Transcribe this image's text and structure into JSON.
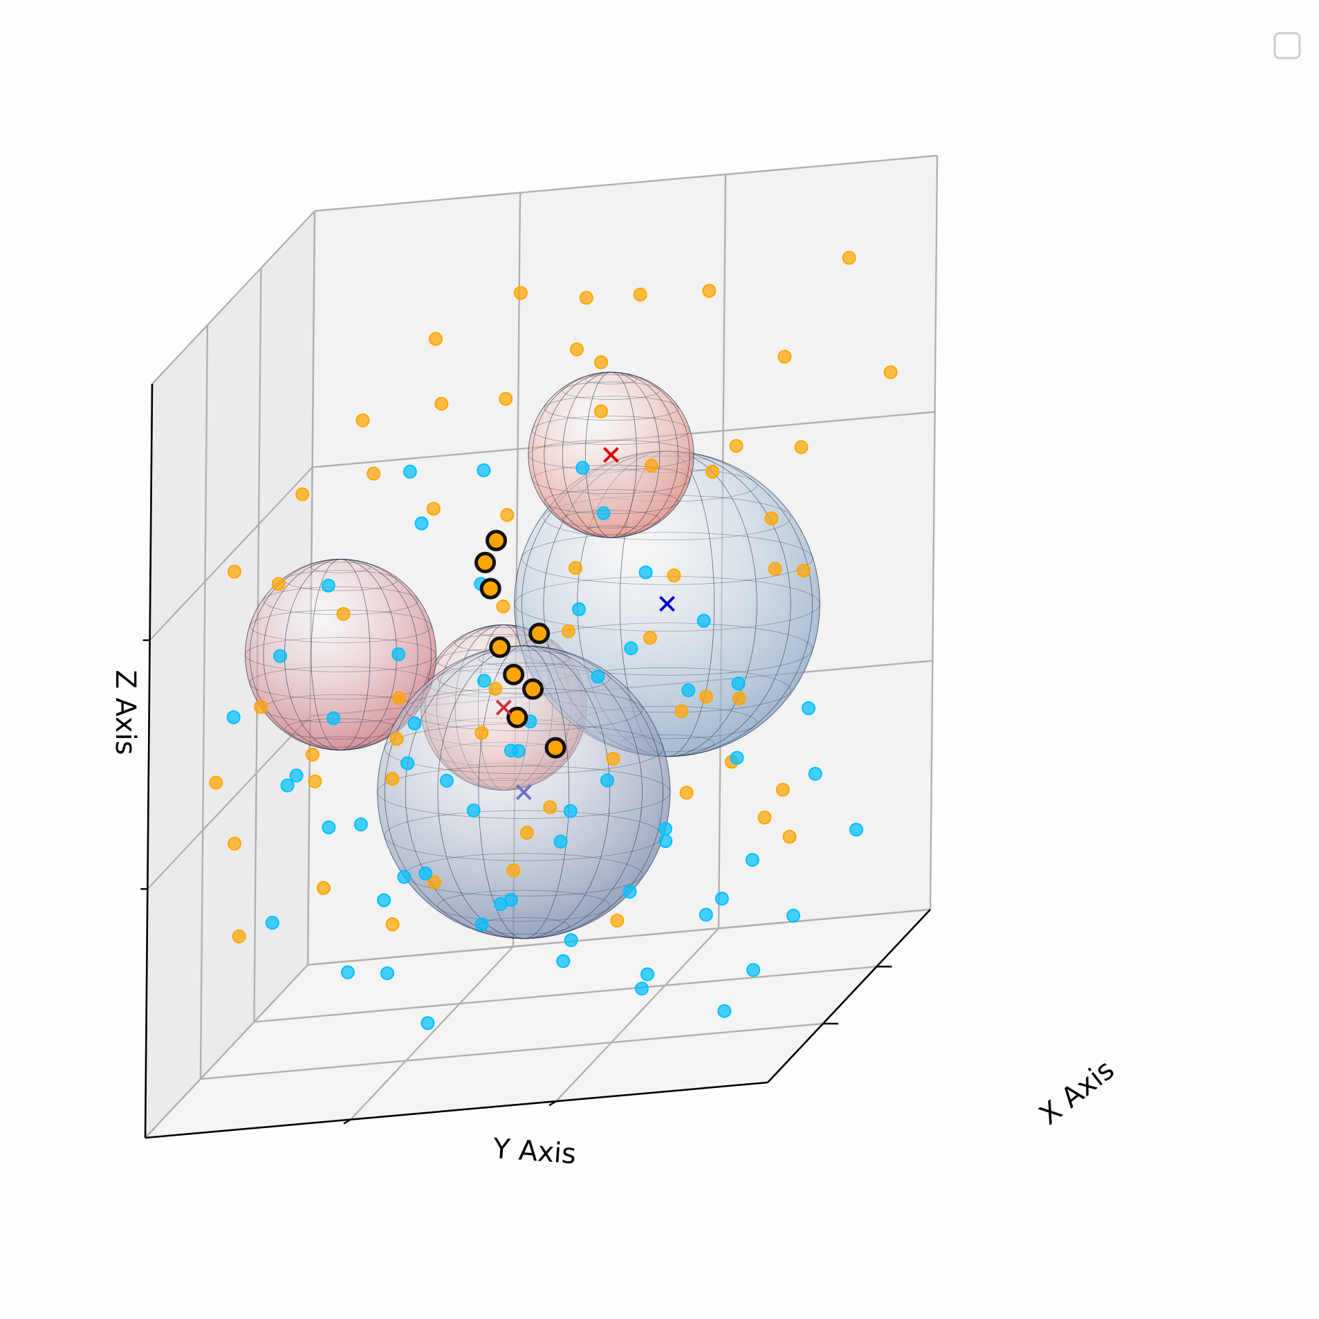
{
  "chart_data": {
    "type": "scatter",
    "projection": "3d",
    "title": "",
    "xlabel": "X Axis",
    "ylabel": "Y Axis",
    "zlabel": "Z Axis",
    "tick_labels_shown": false,
    "grid": true,
    "legend": {
      "placement": "top-right",
      "entries": []
    },
    "colors": {
      "cluster_a_points": "#ffa500",
      "cluster_b_points": "#00bfff",
      "red_centroid": "#dd0000",
      "blue_centroid": "#0000cc",
      "highlight_edge": "#111111"
    },
    "series": [
      {
        "points": [
          [
            9.8,
            2.0,
            7.6
          ],
          [
            6.1,
            3.3,
            9.2
          ],
          [
            5.4,
            4.5,
            8.8
          ],
          [
            4.6,
            5.8,
            8.5
          ],
          [
            7.2,
            1.5,
            6.7
          ],
          [
            8.4,
            3.9,
            6.2
          ],
          [
            3.8,
            6.7,
            8.7
          ],
          [
            2.9,
            7.4,
            8.0
          ],
          [
            1.7,
            8.6,
            6.9
          ],
          [
            6.6,
            7.6,
            8.6
          ],
          [
            5.3,
            2.6,
            8.2
          ],
          [
            7.7,
            4.9,
            7.1
          ],
          [
            6.9,
            5.6,
            7.4
          ],
          [
            4.2,
            4.1,
            6.6
          ],
          [
            3.3,
            5.2,
            7.0
          ],
          [
            8.8,
            5.2,
            5.8
          ],
          [
            2.1,
            6.1,
            5.9
          ],
          [
            1.2,
            7.7,
            5.1
          ],
          [
            0.8,
            8.9,
            4.4
          ],
          [
            5.9,
            6.4,
            6.3
          ],
          [
            7.5,
            7.9,
            5.6
          ],
          [
            4.9,
            7.0,
            6.0
          ],
          [
            3.6,
            8.4,
            5.2
          ],
          [
            2.4,
            9.1,
            4.7
          ],
          [
            6.4,
            2.2,
            5.2
          ],
          [
            5.1,
            3.7,
            4.9
          ],
          [
            4.4,
            5.5,
            4.6
          ],
          [
            3.0,
            6.2,
            4.2
          ],
          [
            1.9,
            7.0,
            3.9
          ],
          [
            0.9,
            8.1,
            3.4
          ],
          [
            8.1,
            6.7,
            4.5
          ],
          [
            7.0,
            8.2,
            4.1
          ],
          [
            6.2,
            9.0,
            3.7
          ],
          [
            5.6,
            8.1,
            3.2
          ],
          [
            4.3,
            8.8,
            2.8
          ],
          [
            2.7,
            9.5,
            3.0
          ],
          [
            1.4,
            9.7,
            2.5
          ],
          [
            3.9,
            4.4,
            3.8
          ],
          [
            2.6,
            4.9,
            3.4
          ],
          [
            6.8,
            3.2,
            3.6
          ],
          [
            7.9,
            4.3,
            3.1
          ],
          [
            8.9,
            6.1,
            2.7
          ],
          [
            9.5,
            7.3,
            3.3
          ],
          [
            9.9,
            8.4,
            2.9
          ],
          [
            5.0,
            6.6,
            2.4
          ],
          [
            3.4,
            7.9,
            2.1
          ],
          [
            7.4,
            9.4,
            2.2
          ],
          [
            8.6,
            9.8,
            3.9
          ],
          [
            9.2,
            8.9,
            4.9
          ],
          [
            9.7,
            6.9,
            6.1
          ],
          [
            9.1,
            4.8,
            7.3
          ],
          [
            8.3,
            2.8,
            8.1
          ],
          [
            7.0,
            2.5,
            9.0
          ],
          [
            9.4,
            3.1,
            9.4
          ],
          [
            5.7,
            5.1,
            9.6
          ],
          [
            4.1,
            3.0,
            9.3
          ],
          [
            3.0,
            4.0,
            9.0
          ],
          [
            2.2,
            5.4,
            8.3
          ],
          [
            1.5,
            6.4,
            7.6
          ],
          [
            0.6,
            7.1,
            6.8
          ]
        ]
      },
      {
        "points": [
          [
            2.1,
            1.3,
            6.0
          ],
          [
            3.4,
            2.6,
            5.4
          ],
          [
            4.8,
            1.9,
            4.8
          ],
          [
            5.5,
            3.4,
            4.2
          ],
          [
            6.7,
            2.4,
            3.7
          ],
          [
            7.8,
            3.6,
            3.0
          ],
          [
            8.7,
            2.2,
            2.4
          ],
          [
            9.6,
            3.1,
            1.8
          ],
          [
            1.0,
            2.8,
            5.6
          ],
          [
            2.5,
            4.2,
            4.9
          ],
          [
            3.7,
            3.5,
            4.3
          ],
          [
            4.6,
            4.8,
            3.6
          ],
          [
            5.9,
            4.3,
            3.0
          ],
          [
            7.1,
            5.3,
            2.5
          ],
          [
            8.4,
            4.9,
            1.9
          ],
          [
            9.3,
            5.8,
            1.3
          ],
          [
            0.7,
            4.6,
            5.1
          ],
          [
            1.8,
            5.5,
            4.4
          ],
          [
            3.1,
            5.9,
            3.8
          ],
          [
            4.3,
            6.4,
            3.2
          ],
          [
            5.6,
            6.0,
            2.6
          ],
          [
            6.9,
            6.7,
            2.0
          ],
          [
            8.0,
            6.2,
            1.5
          ],
          [
            9.0,
            7.1,
            0.9
          ],
          [
            0.4,
            6.3,
            4.7
          ],
          [
            1.6,
            7.0,
            4.0
          ],
          [
            2.8,
            7.6,
            3.4
          ],
          [
            4.0,
            8.2,
            2.8
          ],
          [
            5.2,
            7.5,
            2.2
          ],
          [
            6.3,
            8.0,
            1.7
          ],
          [
            7.6,
            8.6,
            1.1
          ],
          [
            8.8,
            8.1,
            0.6
          ],
          [
            2.2,
            2.0,
            3.5
          ],
          [
            3.6,
            1.4,
            2.9
          ],
          [
            4.9,
            2.7,
            2.3
          ],
          [
            6.2,
            1.8,
            1.6
          ],
          [
            7.4,
            2.9,
            1.0
          ],
          [
            1.3,
            3.8,
            2.6
          ],
          [
            2.7,
            4.5,
            2.0
          ],
          [
            4.1,
            3.9,
            1.4
          ],
          [
            5.4,
            5.0,
            0.8
          ],
          [
            6.6,
            4.4,
            0.4
          ],
          [
            0.9,
            5.7,
            1.8
          ],
          [
            2.3,
            6.4,
            1.2
          ],
          [
            3.8,
            7.2,
            0.6
          ],
          [
            1.5,
            1.1,
            1.0
          ],
          [
            3.0,
            0.8,
            0.5
          ],
          [
            5.0,
            1.2,
            5.9
          ],
          [
            6.1,
            2.8,
            5.4
          ],
          [
            7.3,
            3.8,
            4.9
          ],
          [
            8.2,
            5.1,
            4.3
          ],
          [
            9.1,
            4.2,
            3.7
          ],
          [
            0.5,
            3.3,
            3.1
          ],
          [
            1.9,
            2.4,
            0.3
          ],
          [
            4.5,
            0.6,
            6.4
          ],
          [
            3.3,
            2.1,
            6.8
          ],
          [
            2.4,
            3.2,
            7.1
          ],
          [
            6.6,
            5.6,
            5.0
          ],
          [
            5.3,
            6.8,
            4.4
          ],
          [
            4.2,
            7.7,
            3.9
          ]
        ]
      }
    ],
    "spheres": [
      {
        "center": [
          6.5,
          3.0,
          5.0
        ],
        "radius": 2.4,
        "color": "#7f9fc0"
      },
      {
        "center": [
          5.0,
          6.0,
          3.3
        ],
        "radius": 2.3,
        "color": "#7083a8"
      },
      {
        "center": [
          1.0,
          2.0,
          4.5
        ],
        "radius": 1.5,
        "color": "#c96a72"
      },
      {
        "center": [
          3.5,
          1.5,
          3.5
        ],
        "radius": 1.3,
        "color": "#d46a60"
      },
      {
        "center": [
          7.0,
          8.5,
          8.2
        ],
        "radius": 1.3,
        "color": "#e08070"
      }
    ],
    "centroids": [
      {
        "point": [
          6.5,
          3.0,
          5.0
        ],
        "color": "#0000cc"
      },
      {
        "point": [
          5.0,
          6.0,
          3.3
        ],
        "color": "#7070cc"
      },
      {
        "point": [
          3.5,
          1.5,
          3.5
        ],
        "color": "#cc3344"
      },
      {
        "point": [
          7.0,
          8.5,
          8.2
        ],
        "color": "#dd0000"
      }
    ],
    "highlighted_points": [
      [
        3.2,
        0.9,
        5.6
      ],
      [
        3.0,
        0.8,
        5.3
      ],
      [
        3.4,
        2.0,
        5.2
      ],
      [
        4.5,
        3.2,
        4.8
      ],
      [
        3.3,
        1.0,
        4.2
      ],
      [
        3.5,
        0.9,
        3.8
      ],
      [
        4.2,
        2.4,
        3.9
      ],
      [
        3.9,
        2.2,
        3.5
      ],
      [
        4.7,
        2.9,
        3.2
      ]
    ]
  }
}
